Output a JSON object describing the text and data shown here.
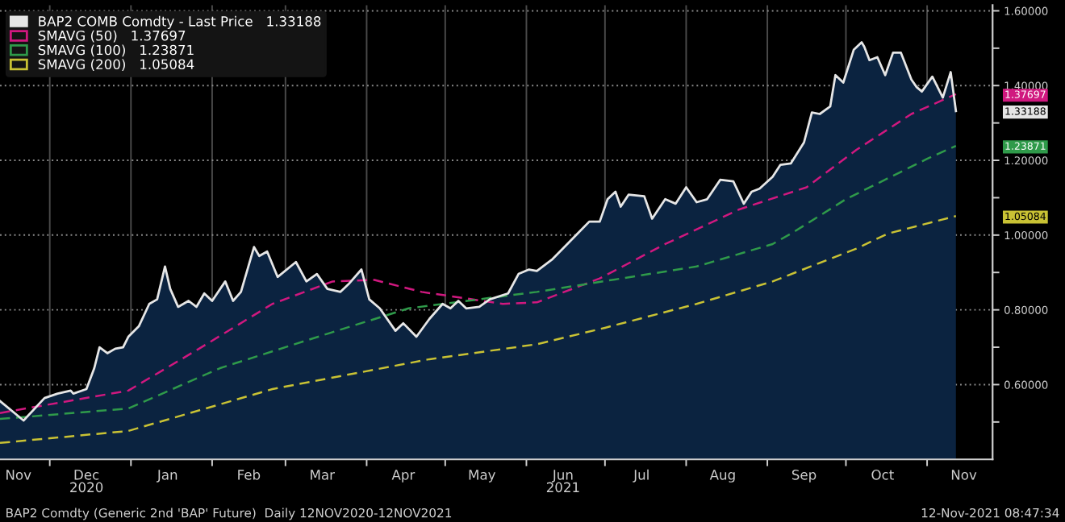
{
  "chart_data": {
    "type": "area",
    "xlim": [
      "2020-11-12",
      "2021-11-26"
    ],
    "xticks": [
      {
        "value": "2020-11-19",
        "label": "Nov"
      },
      {
        "value": "2020-12-01",
        "label": null
      },
      {
        "value": "2020-12-15",
        "label": "Dec\n2020"
      },
      {
        "value": "2021-01-01",
        "label": null
      },
      {
        "value": "2021-01-15",
        "label": "Jan"
      },
      {
        "value": "2021-02-01",
        "label": null
      },
      {
        "value": "2021-02-15",
        "label": "Feb"
      },
      {
        "value": "2021-03-01",
        "label": null
      },
      {
        "value": "2021-03-15",
        "label": "Mar"
      },
      {
        "value": "2021-04-01",
        "label": null
      },
      {
        "value": "2021-04-15",
        "label": "Apr"
      },
      {
        "value": "2021-05-01",
        "label": null
      },
      {
        "value": "2021-05-15",
        "label": "May"
      },
      {
        "value": "2021-06-01",
        "label": null
      },
      {
        "value": "2021-06-15",
        "label": "Jun\n2021"
      },
      {
        "value": "2021-07-01",
        "label": null
      },
      {
        "value": "2021-07-15",
        "label": "Jul"
      },
      {
        "value": "2021-08-01",
        "label": null
      },
      {
        "value": "2021-08-15",
        "label": "Aug"
      },
      {
        "value": "2021-09-01",
        "label": null
      },
      {
        "value": "2021-09-15",
        "label": "Sep"
      },
      {
        "value": "2021-10-01",
        "label": null
      },
      {
        "value": "2021-10-15",
        "label": "Oct"
      },
      {
        "value": "2021-11-01",
        "label": null
      },
      {
        "value": "2021-11-15",
        "label": "Nov"
      }
    ],
    "ylim": [
      0.4,
      1.615
    ],
    "yticks": [
      {
        "value": 0.5,
        "label": null
      },
      {
        "value": 0.6,
        "label": "0.60000"
      },
      {
        "value": 0.7,
        "label": null
      },
      {
        "value": 0.8,
        "label": "0.80000"
      },
      {
        "value": 0.9,
        "label": null
      },
      {
        "value": 1.0,
        "label": "1.00000"
      },
      {
        "value": 1.1,
        "label": null
      },
      {
        "value": 1.2,
        "label": "1.20000"
      },
      {
        "value": 1.3,
        "label": null
      },
      {
        "value": 1.4,
        "label": "1.40000"
      },
      {
        "value": 1.5,
        "label": null
      },
      {
        "value": 1.6,
        "label": "1.60000"
      }
    ],
    "grid": true,
    "legend": "top left",
    "series": [
      {
        "name": "BAP2 COMB Comdty - Last Price   1.33188",
        "color": "#e6e6e6",
        "x": [
          "2020-11-12",
          "2020-11-21",
          "2020-11-29",
          "2020-12-04",
          "2020-12-09",
          "2020-12-10",
          "2020-12-15",
          "2020-12-18",
          "2020-12-20",
          "2020-12-23",
          "2020-12-26",
          "2020-12-29",
          "2020-12-31",
          "2021-01-04",
          "2021-01-08",
          "2021-01-11",
          "2021-01-14",
          "2021-01-16",
          "2021-01-19",
          "2021-01-23",
          "2021-01-26",
          "2021-01-29",
          "2021-02-01",
          "2021-02-06",
          "2021-02-09",
          "2021-02-12",
          "2021-02-17",
          "2021-02-19",
          "2021-02-22",
          "2021-02-26",
          "2021-03-05",
          "2021-03-09",
          "2021-03-13",
          "2021-03-17",
          "2021-03-22",
          "2021-03-25",
          "2021-03-30",
          "2021-04-02",
          "2021-04-06",
          "2021-04-12",
          "2021-04-15",
          "2021-04-20",
          "2021-04-25",
          "2021-04-30",
          "2021-05-03",
          "2021-05-06",
          "2021-05-09",
          "2021-05-14",
          "2021-05-18",
          "2021-05-25",
          "2021-05-29",
          "2021-06-02",
          "2021-06-05",
          "2021-06-11",
          "2021-06-20",
          "2021-06-25",
          "2021-06-29",
          "2021-07-02",
          "2021-07-05",
          "2021-07-07",
          "2021-07-10",
          "2021-07-16",
          "2021-07-19",
          "2021-07-24",
          "2021-07-28",
          "2021-08-01",
          "2021-08-05",
          "2021-08-09",
          "2021-08-14",
          "2021-08-19",
          "2021-08-23",
          "2021-08-26",
          "2021-08-29",
          "2021-09-03",
          "2021-09-06",
          "2021-09-10",
          "2021-09-15",
          "2021-09-18",
          "2021-09-21",
          "2021-09-25",
          "2021-09-27",
          "2021-09-30",
          "2021-10-04",
          "2021-10-07",
          "2021-10-08",
          "2021-10-10",
          "2021-10-13",
          "2021-10-16",
          "2021-10-19",
          "2021-10-22",
          "2021-10-26",
          "2021-10-28",
          "2021-10-30",
          "2021-11-03",
          "2021-11-07",
          "2021-11-10",
          "2021-11-12"
        ],
        "values": [
          0.556,
          0.504,
          0.564,
          0.576,
          0.584,
          0.576,
          0.588,
          0.644,
          0.7,
          0.684,
          0.696,
          0.7,
          0.728,
          0.756,
          0.816,
          0.828,
          0.916,
          0.856,
          0.808,
          0.824,
          0.808,
          0.844,
          0.824,
          0.876,
          0.824,
          0.848,
          0.968,
          0.944,
          0.956,
          0.888,
          0.928,
          0.876,
          0.896,
          0.856,
          0.848,
          0.868,
          0.908,
          0.828,
          0.804,
          0.744,
          0.764,
          0.728,
          0.776,
          0.816,
          0.804,
          0.824,
          0.804,
          0.808,
          0.828,
          0.844,
          0.896,
          0.908,
          0.904,
          0.936,
          1.0,
          1.036,
          1.036,
          1.096,
          1.116,
          1.076,
          1.108,
          1.104,
          1.044,
          1.096,
          1.084,
          1.128,
          1.088,
          1.096,
          1.148,
          1.144,
          1.084,
          1.116,
          1.124,
          1.156,
          1.188,
          1.192,
          1.248,
          1.328,
          1.324,
          1.344,
          1.428,
          1.408,
          1.496,
          1.516,
          1.504,
          1.468,
          1.476,
          1.428,
          1.488,
          1.488,
          1.416,
          1.396,
          1.384,
          1.424,
          1.368,
          1.436,
          1.33188
        ]
      },
      {
        "name": "SMAVG (50)   1.37697",
        "type": "line",
        "line_style": "dashed",
        "color": "#d0187f",
        "x": [
          "2020-11-12",
          "2020-12-31",
          "2021-01-27",
          "2021-02-24",
          "2021-03-19",
          "2021-04-04",
          "2021-04-22",
          "2021-05-23",
          "2021-06-05",
          "2021-06-29",
          "2021-07-24",
          "2021-08-21",
          "2021-09-16",
          "2021-10-05",
          "2021-10-26",
          "2021-11-12"
        ],
        "values": [
          0.524,
          0.584,
          0.696,
          0.816,
          0.876,
          0.88,
          0.848,
          0.816,
          0.82,
          0.884,
          0.976,
          1.068,
          1.128,
          1.228,
          1.324,
          1.37697
        ]
      },
      {
        "name": "SMAVG (100)   1.23871",
        "type": "line",
        "line_style": "dashed",
        "color": "#2f9a4a",
        "x": [
          "2020-11-12",
          "2020-12-31",
          "2021-02-04",
          "2021-03-17",
          "2021-04-17",
          "2021-06-05",
          "2021-08-05",
          "2021-09-03",
          "2021-09-11",
          "2021-10-01",
          "2021-11-01",
          "2021-11-12"
        ],
        "values": [
          0.508,
          0.536,
          0.644,
          0.736,
          0.804,
          0.848,
          0.916,
          0.976,
          1.008,
          1.096,
          1.204,
          1.23871
        ]
      },
      {
        "name": "SMAVG (200)   1.05084",
        "type": "line",
        "line_style": "dashed",
        "color": "#c9c234",
        "x": [
          "2020-11-12",
          "2020-12-31",
          "2021-02-24",
          "2021-04-25",
          "2021-06-05",
          "2021-07-01",
          "2021-08-05",
          "2021-09-03",
          "2021-10-05",
          "2021-10-17",
          "2021-11-12"
        ],
        "values": [
          0.444,
          0.476,
          0.588,
          0.668,
          0.708,
          0.752,
          0.816,
          0.876,
          0.964,
          1.004,
          1.05084
        ]
      }
    ],
    "annotations": [
      "1.33188",
      "1.37697",
      "1.23871",
      "1.05084",
      "BAP2 Comdty (Generic 2nd 'BAP' Future)  Daily 12NOV2020-12NOV2021",
      "12-Nov-2021 08:47:34"
    ]
  }
}
